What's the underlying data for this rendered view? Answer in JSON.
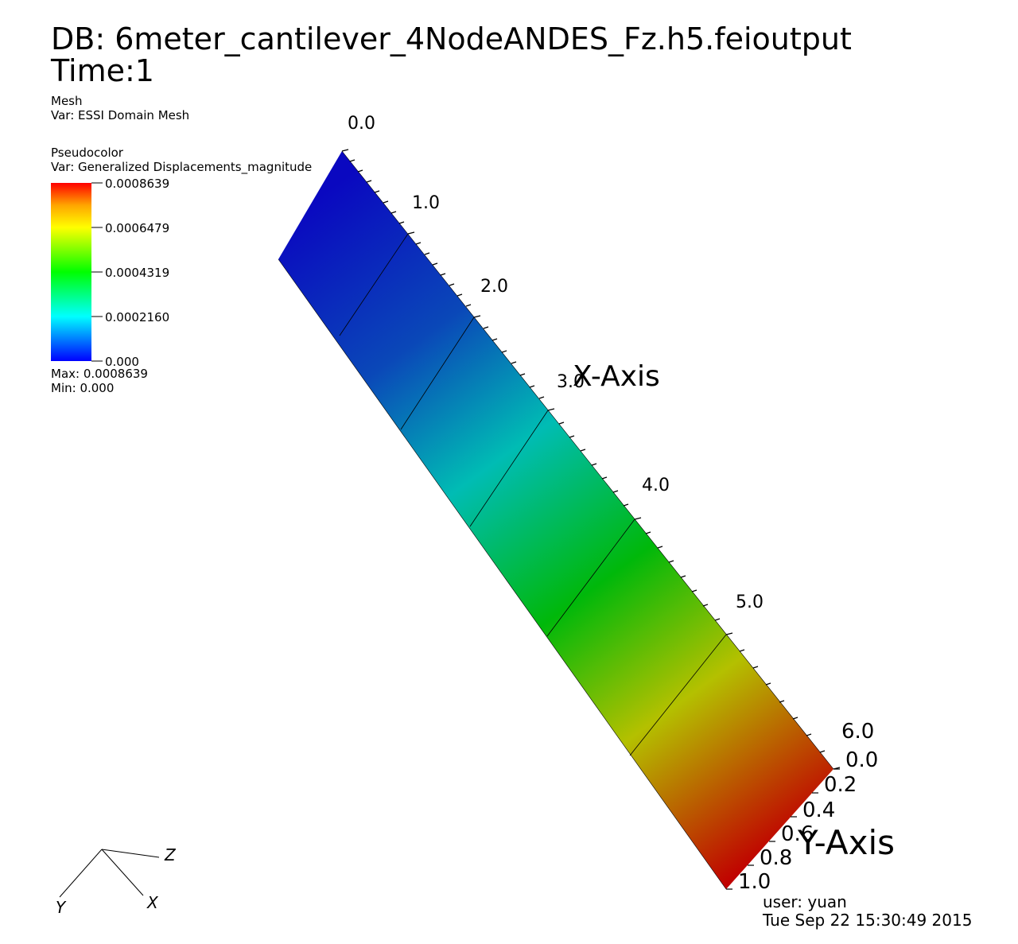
{
  "header": {
    "db_title": "DB: 6meter_cantilever_4NodeANDES_Fz.h5.feioutput",
    "time_label": "Time:1"
  },
  "mesh_legend": {
    "name": "Mesh",
    "var": "Var: ESSI Domain Mesh"
  },
  "pseudocolor_legend": {
    "name": "Pseudocolor",
    "var": "Var: Generalized Displacements_magnitude",
    "ticks": [
      "0.0008639",
      "0.0006479",
      "0.0004319",
      "0.0002160",
      "0.000"
    ],
    "max_text": "Max:  0.0008639",
    "min_text": "Min:  0.000",
    "colors": [
      "#ff0000",
      "#ffa500",
      "#ffff00",
      "#00ff00",
      "#00ffff",
      "#0000ff"
    ]
  },
  "axes": {
    "x_axis_title": "X-Axis",
    "y_axis_title": "Y-Axis",
    "x_ticks": [
      "0.0",
      "1.0",
      "2.0",
      "3.0",
      "4.0",
      "5.0",
      "6.0"
    ],
    "y_ticks": [
      "0.0",
      "0.2",
      "0.4",
      "0.6",
      "0.8",
      "1.0"
    ]
  },
  "triad": {
    "z": "Z",
    "y": "Y",
    "x": "X"
  },
  "footer": {
    "user": "user: yuan",
    "date": "Tue Sep 22 15:30:49 2015"
  }
}
